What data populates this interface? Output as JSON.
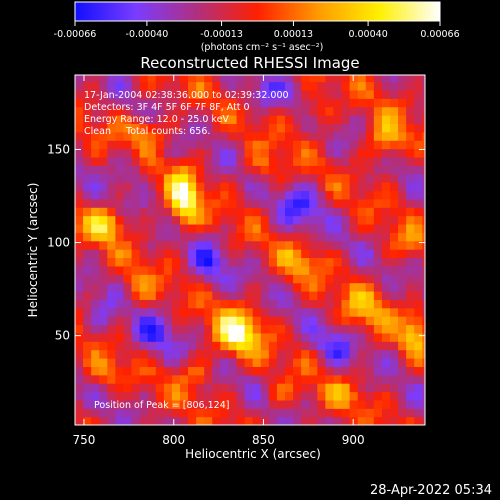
{
  "colorbar": {
    "ticks": [
      "-0.00066",
      "-0.00040",
      "-0.00013",
      "0.00013",
      "0.00040",
      "0.00066"
    ],
    "tick_values": [
      -0.00066,
      -0.0004,
      -0.00013,
      0.00013,
      0.0004,
      0.00066
    ],
    "units": "(photons cm⁻² s⁻¹ asec⁻²)",
    "stops": [
      "#1010ff",
      "#7a3cff",
      "#b03080",
      "#ff2000",
      "#ff9a00",
      "#fff000",
      "#ffffff"
    ]
  },
  "chart_data": {
    "type": "heatmap",
    "title": "Reconstructed RHESSI Image",
    "xlabel": "Heliocentric X (arcsec)",
    "ylabel": "Heliocentric Y (arcsec)",
    "xlim": [
      745,
      940
    ],
    "ylim": [
      2,
      190
    ],
    "xticks": [
      750,
      800,
      850,
      900
    ],
    "yticks": [
      50,
      100,
      150
    ],
    "clim": [
      -0.00066,
      0.00066
    ],
    "info_lines": [
      "17-Jan-2004 02:38:36.000 to 02:39:32.000",
      "Detectors: 3F 4F 5F 6F 7F 8F, Att 0",
      "Energy Range: 12.0 - 25.0 keV",
      "Clean     Total counts: 656."
    ],
    "peak_label": "Position of Peak = [806,124]",
    "peak": [
      806,
      124
    ],
    "sources": [
      {
        "x": 806,
        "y": 124,
        "amp": 0.00066,
        "sx": 6,
        "sy": 11
      },
      {
        "x": 836,
        "y": 52,
        "amp": 0.00062,
        "sx": 9,
        "sy": 9
      },
      {
        "x": 762,
        "y": 110,
        "amp": 0.00048,
        "sx": 8,
        "sy": 6
      },
      {
        "x": 918,
        "y": 155,
        "amp": 0.00045,
        "sx": 7,
        "sy": 8
      },
      {
        "x": 906,
        "y": 64,
        "amp": 0.0003,
        "sx": 9,
        "sy": 9
      },
      {
        "x": 760,
        "y": 30,
        "amp": 0.00026,
        "sx": 7,
        "sy": 6
      },
      {
        "x": 934,
        "y": 52,
        "amp": 0.00038,
        "sx": 5,
        "sy": 9
      },
      {
        "x": 870,
        "y": 90,
        "amp": 0.00028,
        "sx": 8,
        "sy": 7
      },
      {
        "x": 785,
        "y": 160,
        "amp": 0.00034,
        "sx": 9,
        "sy": 6
      },
      {
        "x": 880,
        "y": 170,
        "amp": 0.00026,
        "sx": 7,
        "sy": 6
      },
      {
        "x": 812,
        "y": 30,
        "amp": 0.00024,
        "sx": 7,
        "sy": 6
      },
      {
        "x": 850,
        "y": 140,
        "amp": 0.00022,
        "sx": 8,
        "sy": 7
      },
      {
        "x": 930,
        "y": 100,
        "amp": 0.00022,
        "sx": 6,
        "sy": 7
      },
      {
        "x": 780,
        "y": 75,
        "amp": 0.00022,
        "sx": 6,
        "sy": 8
      },
      {
        "x": 895,
        "y": 20,
        "amp": 0.0002,
        "sx": 9,
        "sy": 6
      },
      {
        "x": 860,
        "y": 18,
        "amp": 0.00018,
        "sx": 7,
        "sy": 5
      },
      {
        "x": 788,
        "y": 50,
        "amp": -0.00028,
        "sx": 9,
        "sy": 9
      },
      {
        "x": 820,
        "y": 90,
        "amp": -0.00026,
        "sx": 8,
        "sy": 9
      },
      {
        "x": 870,
        "y": 120,
        "amp": -0.0003,
        "sx": 9,
        "sy": 9
      },
      {
        "x": 890,
        "y": 45,
        "amp": -0.00024,
        "sx": 8,
        "sy": 8
      },
      {
        "x": 775,
        "y": 140,
        "amp": -0.0002,
        "sx": 7,
        "sy": 7
      },
      {
        "x": 850,
        "y": 180,
        "amp": -0.00022,
        "sx": 8,
        "sy": 6
      },
      {
        "x": 760,
        "y": 60,
        "amp": -0.00018,
        "sx": 6,
        "sy": 8
      }
    ]
  },
  "timestamp": "28-Apr-2022 05:34"
}
